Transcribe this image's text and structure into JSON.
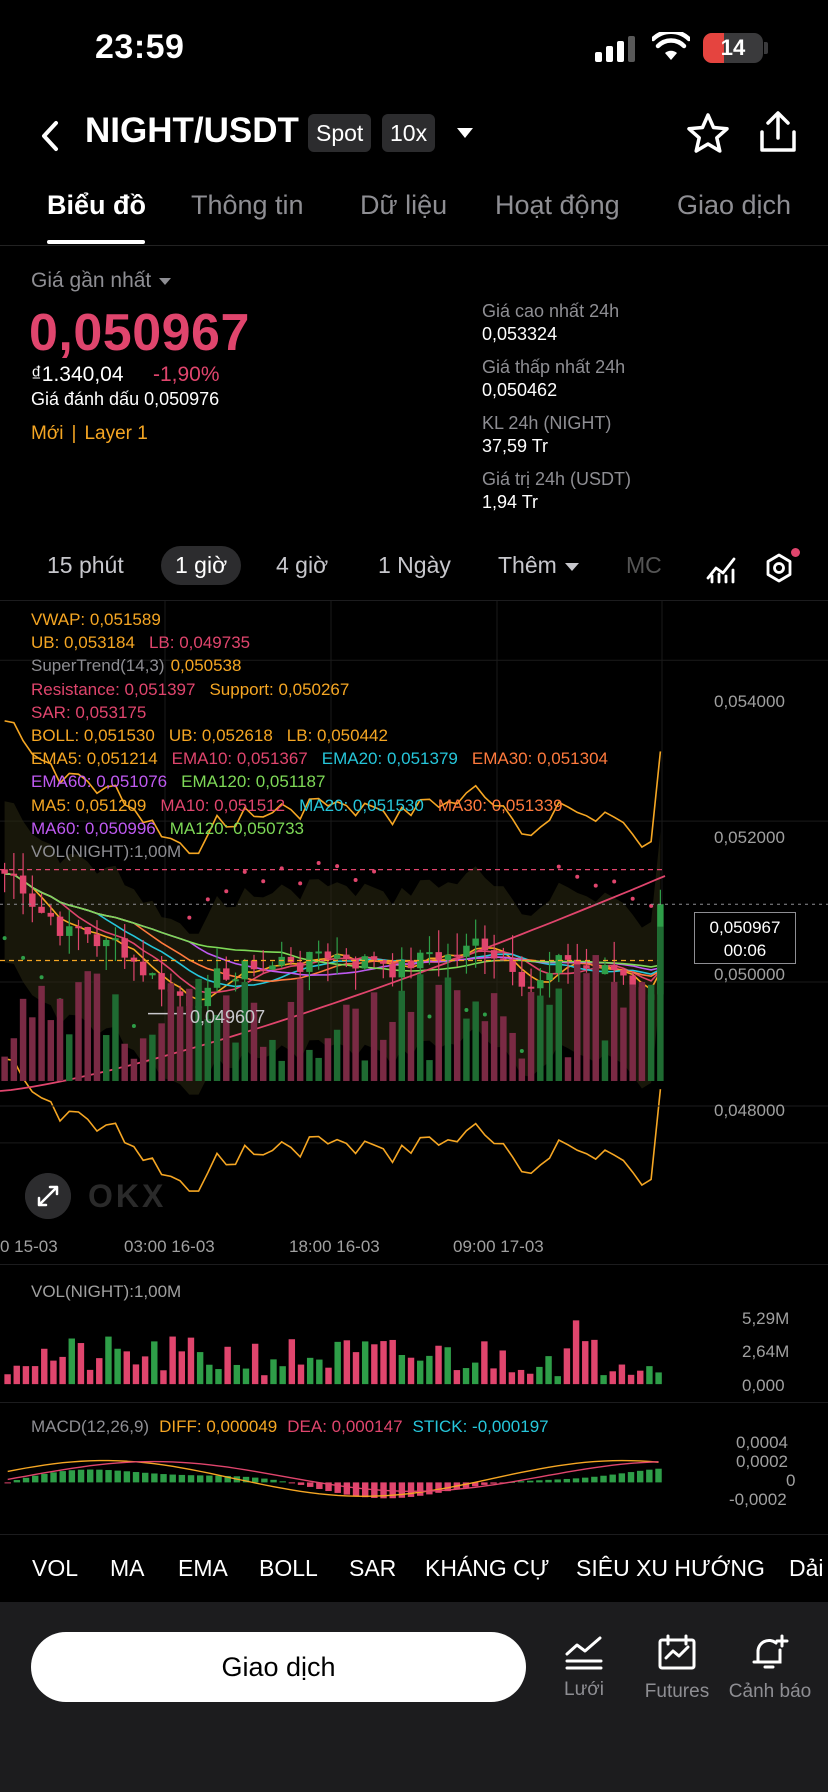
{
  "status": {
    "time": "23:59",
    "battery": "14"
  },
  "header": {
    "pair": "NIGHT/USDT",
    "market_type": "Spot",
    "leverage": "10x"
  },
  "tabs": [
    "Biểu đồ",
    "Thông tin",
    "Dữ liệu",
    "Hoạt động",
    "Giao dịch"
  ],
  "stats": {
    "last_label": "Giá gần nhất",
    "last_price": "0,050967",
    "fiat": "₫1.340,04",
    "change": "-1,90%",
    "mark": "Giá đánh dấu 0,050976",
    "tag_new": "Mới",
    "tag_sep": "|",
    "tag_layer": "Layer 1",
    "high_label": "Giá cao nhất 24h",
    "high": "0,053324",
    "low_label": "Giá thấp nhất 24h",
    "low": "0,050462",
    "vol_label": "KL 24h (NIGHT)",
    "vol": "37,59 Tr",
    "val_label": "Giá trị 24h (USDT)",
    "val": "1,94 Tr"
  },
  "timeframes": {
    "t15": "15 phút",
    "t1h": "1 giờ",
    "t4h": "4 giờ",
    "t1d": "1 Ngày",
    "more": "Thêm",
    "mc": "MC"
  },
  "legend": {
    "vwap": "VWAP: 0,051589",
    "ub1": "UB: 0,053184",
    "lb1": "LB: 0,049735",
    "st_name": "SuperTrend(14,3)",
    "st_val": "0,050538",
    "resistance": "Resistance: 0,051397",
    "support": "Support: 0,050267",
    "sar": "SAR: 0,053175",
    "boll": "BOLL: 0,051530",
    "boll_ub": "UB: 0,052618",
    "boll_lb": "LB: 0,050442",
    "ema5": "EMA5: 0,051214",
    "ema10": "EMA10: 0,051367",
    "ema20": "EMA20: 0,051379",
    "ema30": "EMA30: 0,051304",
    "ema60": "EMA60: 0,051076",
    "ema120": "EMA120: 0,051187",
    "ma5": "MA5: 0,051209",
    "ma10": "MA10: 0,051512",
    "ma20": "MA20: 0,051530",
    "ma30": "MA30: 0,051339",
    "ma60": "MA60: 0,050996",
    "ma120": "MA120: 0,050733",
    "vol": "VOL(NIGHT):1,00M"
  },
  "chart_data": {
    "type": "candlestick",
    "price_axis": [
      "0,054000",
      "0,052000",
      "0,050000",
      "0,048000"
    ],
    "last_price": "0,050967",
    "countdown": "00:06",
    "low_marker": "0,049607",
    "time_axis": [
      "0 15-03",
      "03:00 16-03",
      "18:00 16-03",
      "09:00 17-03"
    ],
    "volume_axis": [
      "5,29M",
      "2,64M",
      "0,000"
    ],
    "macd_axis": [
      "0,0004",
      "0,0002",
      "0",
      "-0,0002"
    ]
  },
  "volume_panel": {
    "label": "VOL(NIGHT):1,00M"
  },
  "macd": {
    "name": "MACD(12,26,9)",
    "diff": "DIFF: 0,000049",
    "dea": "DEA: 0,000147",
    "stick": "STICK: -0,000197"
  },
  "indicator_tabs": [
    "VOL",
    "MA",
    "EMA",
    "BOLL",
    "SAR",
    "KHÁNG CỰ",
    "SIÊU XU HƯỚNG",
    "Dải"
  ],
  "bottom": {
    "trade": "Giao dịch",
    "grid": "Lưới",
    "futures": "Futures",
    "alert": "Cảnh báo"
  },
  "colors": {
    "down": "#e0456d",
    "up": "#2e9e48",
    "accent": "#f5a623"
  }
}
